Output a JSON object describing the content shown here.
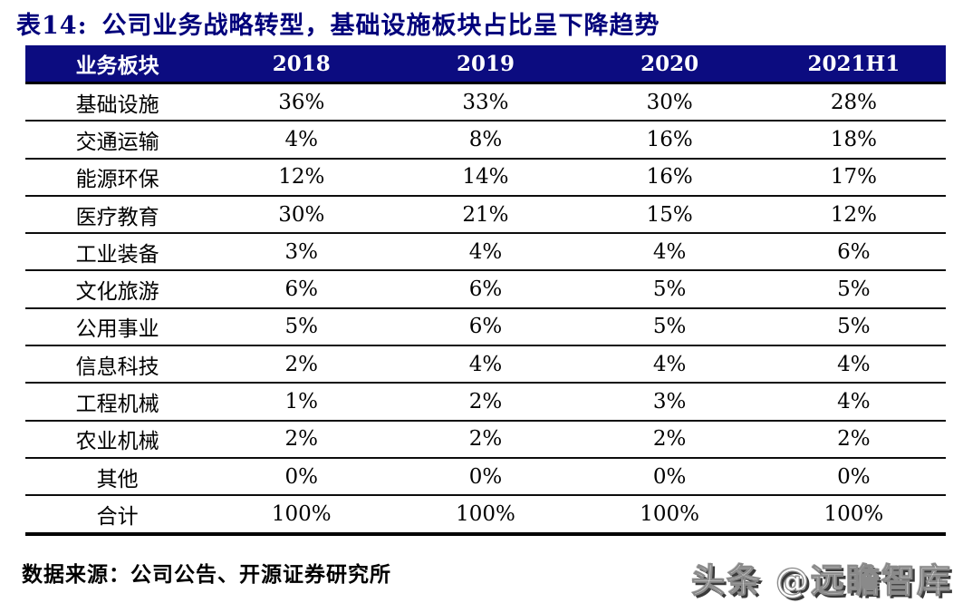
{
  "caption": {
    "label": "表14:",
    "title": "公司业务战略转型，基础设施板块占比呈下降趋势"
  },
  "chart_data": {
    "type": "table",
    "title": "表14: 公司业务战略转型，基础设施板块占比呈下降趋势",
    "columns": [
      "业务板块",
      "2018",
      "2019",
      "2020",
      "2021H1"
    ],
    "categories": [
      "基础设施",
      "交通运输",
      "能源环保",
      "医疗教育",
      "工业装备",
      "文化旅游",
      "公用事业",
      "信息科技",
      "工程机械",
      "农业机械",
      "其他",
      "合计"
    ],
    "series": [
      {
        "name": "2018",
        "values": [
          "36%",
          "4%",
          "12%",
          "30%",
          "3%",
          "6%",
          "5%",
          "2%",
          "1%",
          "2%",
          "0%",
          "100%"
        ]
      },
      {
        "name": "2019",
        "values": [
          "33%",
          "8%",
          "14%",
          "21%",
          "4%",
          "6%",
          "6%",
          "4%",
          "2%",
          "2%",
          "0%",
          "100%"
        ]
      },
      {
        "name": "2020",
        "values": [
          "30%",
          "16%",
          "16%",
          "15%",
          "4%",
          "5%",
          "5%",
          "4%",
          "3%",
          "2%",
          "0%",
          "100%"
        ]
      },
      {
        "name": "2021H1",
        "values": [
          "28%",
          "18%",
          "17%",
          "12%",
          "6%",
          "5%",
          "5%",
          "4%",
          "4%",
          "2%",
          "0%",
          "100%"
        ]
      }
    ],
    "source_note": "数据来源：公司公告、开源证券研究所"
  },
  "footer": {
    "source": "数据来源：公司公告、开源证券研究所"
  },
  "watermark": {
    "text": "头条 @远瞻智库"
  },
  "colors": {
    "header_bg": "#0c0c80",
    "header_text": "#ffffff",
    "title_text": "#00007b",
    "body_text": "#000000"
  }
}
